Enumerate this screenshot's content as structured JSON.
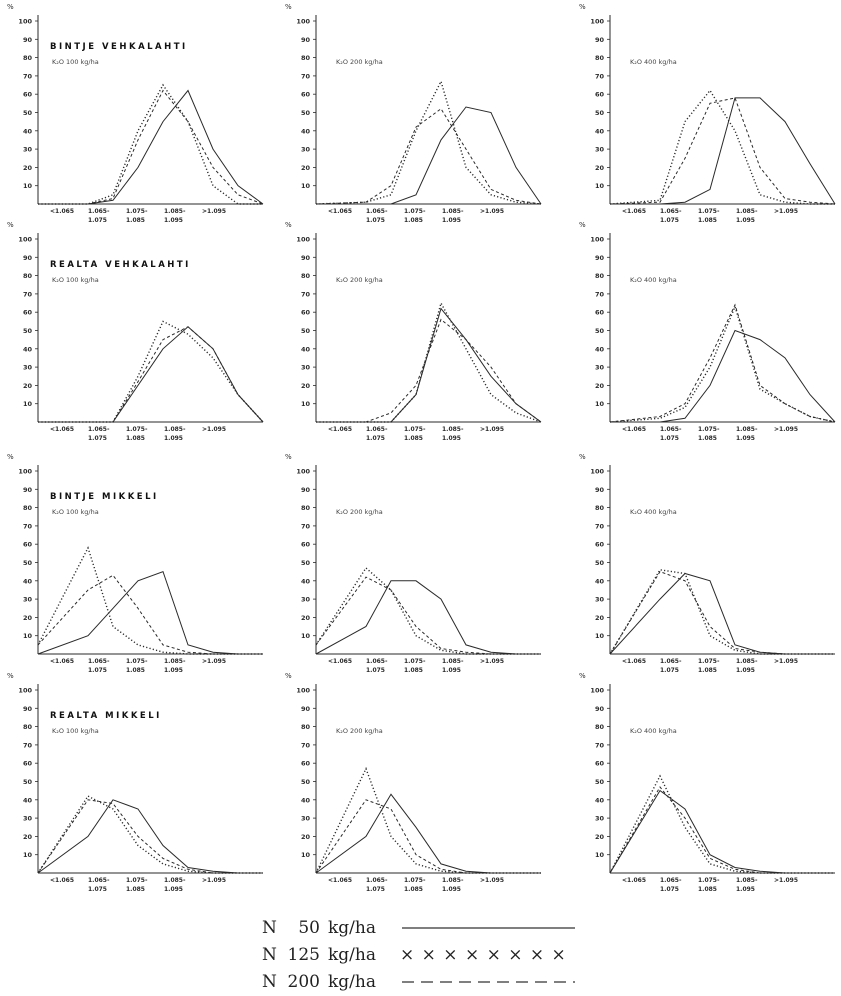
{
  "chart_data": [
    {
      "type": "line",
      "title": "BINTJE VEHKALAHTI",
      "subtitle": "K₂O  100 kg/ha",
      "ylabel": "%",
      "ylim": [
        0,
        100
      ],
      "y_ticks": [
        10,
        20,
        30,
        40,
        50,
        60,
        70,
        80,
        90,
        100
      ],
      "categories": [
        "<1.065",
        "1.065-\n1.075",
        "1.075-\n1.085",
        "1.085-\n1.095",
        ">1.095"
      ],
      "x": [
        0,
        1,
        1.5,
        2,
        2.5,
        3,
        3.5,
        4,
        4.5
      ],
      "series": [
        {
          "style": "solid",
          "values": [
            0,
            0,
            2,
            20,
            45,
            62,
            30,
            10,
            0
          ]
        },
        {
          "style": "dotted-cross",
          "values": [
            0,
            0,
            5,
            40,
            65,
            45,
            10,
            0,
            0
          ]
        },
        {
          "style": "dashed",
          "values": [
            0,
            0,
            3,
            35,
            62,
            45,
            20,
            5,
            0
          ]
        }
      ]
    },
    {
      "type": "line",
      "title": "",
      "subtitle": "K₂O  200 kg/ha",
      "ylabel": "%",
      "ylim": [
        0,
        100
      ],
      "y_ticks": [
        10,
        20,
        30,
        40,
        50,
        60,
        70,
        80,
        90,
        100
      ],
      "categories": [
        "<1.065",
        "1.065-\n1.075",
        "1.075-\n1.085",
        "1.085-\n1.095",
        ">1.095"
      ],
      "x": [
        0,
        1,
        1.5,
        2,
        2.5,
        3,
        3.5,
        4,
        4.5
      ],
      "series": [
        {
          "style": "solid",
          "values": [
            0,
            0,
            0,
            5,
            35,
            53,
            50,
            20,
            0
          ]
        },
        {
          "style": "dotted-cross",
          "values": [
            0,
            1,
            5,
            40,
            67,
            20,
            5,
            1,
            0
          ]
        },
        {
          "style": "dashed",
          "values": [
            0,
            1,
            10,
            42,
            52,
            30,
            8,
            2,
            0
          ]
        }
      ]
    },
    {
      "type": "line",
      "title": "",
      "subtitle": "K₂O  400 kg/ha",
      "ylabel": "%",
      "ylim": [
        0,
        100
      ],
      "y_ticks": [
        10,
        20,
        30,
        40,
        50,
        60,
        70,
        80,
        90,
        100
      ],
      "categories": [
        "<1.065",
        "1.065-\n1.075",
        "1.075-\n1.085",
        "1.085-\n1.095",
        ">1.095"
      ],
      "x": [
        0,
        1,
        1.5,
        2,
        2.5,
        3,
        3.5,
        4,
        4.5
      ],
      "series": [
        {
          "style": "solid",
          "values": [
            0,
            0,
            1,
            8,
            58,
            58,
            45,
            22,
            0
          ]
        },
        {
          "style": "dotted-cross",
          "values": [
            0,
            2,
            45,
            62,
            40,
            5,
            1,
            0,
            0
          ]
        },
        {
          "style": "dashed",
          "values": [
            0,
            1,
            25,
            55,
            58,
            20,
            3,
            1,
            0
          ]
        }
      ]
    },
    {
      "type": "line",
      "title": "REALTA VEHKALAHTI",
      "subtitle": "K₂O  100 kg/ha",
      "ylabel": "%",
      "ylim": [
        0,
        100
      ],
      "y_ticks": [
        10,
        20,
        30,
        40,
        50,
        60,
        70,
        80,
        90,
        100
      ],
      "categories": [
        "<1.065",
        "1.065-\n1.075",
        "1.075-\n1.085",
        "1.085-\n1.095",
        ">1.095"
      ],
      "x": [
        0,
        1,
        1.5,
        2,
        2.5,
        3,
        3.5,
        4,
        4.5
      ],
      "series": [
        {
          "style": "solid",
          "values": [
            0,
            0,
            0,
            20,
            40,
            52,
            40,
            15,
            0
          ]
        },
        {
          "style": "dotted-cross",
          "values": [
            0,
            0,
            0,
            25,
            55,
            48,
            35,
            15,
            0
          ]
        },
        {
          "style": "dashed",
          "values": [
            0,
            0,
            0,
            22,
            45,
            52,
            40,
            15,
            0
          ]
        }
      ]
    },
    {
      "type": "line",
      "title": "",
      "subtitle": "K₂O  200 kg/ha",
      "ylabel": "%",
      "ylim": [
        0,
        100
      ],
      "y_ticks": [
        10,
        20,
        30,
        40,
        50,
        60,
        70,
        80,
        90,
        100
      ],
      "categories": [
        "<1.065",
        "1.065-\n1.075",
        "1.075-\n1.085",
        "1.085-\n1.095",
        ">1.095"
      ],
      "x": [
        0,
        1,
        1.5,
        2,
        2.5,
        3,
        3.5,
        4,
        4.5
      ],
      "series": [
        {
          "style": "solid",
          "values": [
            0,
            0,
            0,
            15,
            62,
            45,
            25,
            10,
            0
          ]
        },
        {
          "style": "dotted-cross",
          "values": [
            0,
            0,
            0,
            15,
            65,
            40,
            15,
            5,
            0
          ]
        },
        {
          "style": "dashed",
          "values": [
            0,
            0,
            5,
            20,
            56,
            45,
            30,
            10,
            0
          ]
        }
      ]
    },
    {
      "type": "line",
      "title": "",
      "subtitle": "K₂O  400 kg/ha",
      "ylabel": "%",
      "ylim": [
        0,
        100
      ],
      "y_ticks": [
        10,
        20,
        30,
        40,
        50,
        60,
        70,
        80,
        90,
        100
      ],
      "categories": [
        "<1.065",
        "1.065-\n1.075",
        "1.075-\n1.085",
        "1.085-\n1.095",
        ">1.095"
      ],
      "x": [
        0,
        1,
        1.5,
        2,
        2.5,
        3,
        3.5,
        4,
        4.5
      ],
      "series": [
        {
          "style": "solid",
          "values": [
            0,
            0,
            2,
            20,
            50,
            45,
            35,
            15,
            0
          ]
        },
        {
          "style": "dotted-cross",
          "values": [
            0,
            2,
            8,
            30,
            63,
            18,
            10,
            3,
            0
          ]
        },
        {
          "style": "dashed",
          "values": [
            0,
            3,
            10,
            35,
            64,
            20,
            10,
            3,
            0
          ]
        }
      ]
    },
    {
      "type": "line",
      "title": "BINTJE MIKKELI",
      "subtitle": "K₂O  100 kg/ha",
      "ylabel": "%",
      "ylim": [
        0,
        100
      ],
      "y_ticks": [
        10,
        20,
        30,
        40,
        50,
        60,
        70,
        80,
        90,
        100
      ],
      "categories": [
        "<1.065",
        "1.065-\n1.075",
        "1.075-\n1.085",
        "1.085-\n1.095",
        ">1.095"
      ],
      "x": [
        0,
        1,
        1.5,
        2,
        2.5,
        3,
        3.5,
        4,
        4.5
      ],
      "series": [
        {
          "style": "solid",
          "values": [
            0,
            10,
            25,
            40,
            45,
            5,
            1,
            0,
            0
          ]
        },
        {
          "style": "dotted-cross",
          "values": [
            5,
            58,
            15,
            5,
            1,
            0,
            0,
            0,
            0
          ]
        },
        {
          "style": "dashed",
          "values": [
            5,
            35,
            43,
            25,
            5,
            1,
            0,
            0,
            0
          ]
        }
      ]
    },
    {
      "type": "line",
      "title": "",
      "subtitle": "K₂O  200 kg/ha",
      "ylabel": "%",
      "ylim": [
        0,
        100
      ],
      "y_ticks": [
        10,
        20,
        30,
        40,
        50,
        60,
        70,
        80,
        90,
        100
      ],
      "categories": [
        "<1.065",
        "1.065-\n1.075",
        "1.075-\n1.085",
        "1.085-\n1.095",
        ">1.095"
      ],
      "x": [
        0,
        1,
        1.5,
        2,
        2.5,
        3,
        3.5,
        4,
        4.5
      ],
      "series": [
        {
          "style": "solid",
          "values": [
            0,
            15,
            40,
            40,
            30,
            5,
            1,
            0,
            0
          ]
        },
        {
          "style": "dotted-cross",
          "values": [
            5,
            47,
            35,
            10,
            2,
            0,
            0,
            0,
            0
          ]
        },
        {
          "style": "dashed",
          "values": [
            5,
            42,
            35,
            15,
            3,
            1,
            0,
            0,
            0
          ]
        }
      ]
    },
    {
      "type": "line",
      "title": "",
      "subtitle": "K₂O  400 kg/ha",
      "ylabel": "%",
      "ylim": [
        0,
        100
      ],
      "y_ticks": [
        10,
        20,
        30,
        40,
        50,
        60,
        70,
        80,
        90,
        100
      ],
      "categories": [
        "<1.065",
        "1.065-\n1.075",
        "1.075-\n1.085",
        "1.085-\n1.095",
        ">1.095"
      ],
      "x": [
        0,
        1,
        1.5,
        2,
        2.5,
        3,
        3.5,
        4,
        4.5
      ],
      "series": [
        {
          "style": "solid",
          "values": [
            0,
            30,
            44,
            40,
            5,
            1,
            0,
            0,
            0
          ]
        },
        {
          "style": "dotted-cross",
          "values": [
            0,
            46,
            44,
            10,
            2,
            0,
            0,
            0,
            0
          ]
        },
        {
          "style": "dashed",
          "values": [
            0,
            45,
            40,
            15,
            3,
            1,
            0,
            0,
            0
          ]
        }
      ]
    },
    {
      "type": "line",
      "title": "REALTA MIKKELI",
      "subtitle": "K₂O  100 kg/ha",
      "ylabel": "%",
      "ylim": [
        0,
        100
      ],
      "y_ticks": [
        10,
        20,
        30,
        40,
        50,
        60,
        70,
        80,
        90,
        100
      ],
      "categories": [
        "<1.065",
        "1.065-\n1.075",
        "1.075-\n1.085",
        "1.085-\n1.095",
        ">1.095"
      ],
      "x": [
        0,
        1,
        1.5,
        2,
        2.5,
        3,
        3.5,
        4,
        4.5
      ],
      "series": [
        {
          "style": "solid",
          "values": [
            0,
            20,
            40,
            35,
            15,
            3,
            1,
            0,
            0
          ]
        },
        {
          "style": "dotted-cross",
          "values": [
            0,
            42,
            35,
            15,
            5,
            1,
            0,
            0,
            0
          ]
        },
        {
          "style": "dashed",
          "values": [
            0,
            40,
            38,
            20,
            8,
            2,
            0,
            0,
            0
          ]
        }
      ]
    },
    {
      "type": "line",
      "title": "",
      "subtitle": "K₂O  200 kg/ha",
      "ylabel": "%",
      "ylim": [
        0,
        100
      ],
      "y_ticks": [
        10,
        20,
        30,
        40,
        50,
        60,
        70,
        80,
        90,
        100
      ],
      "categories": [
        "<1.065",
        "1.065-\n1.075",
        "1.075-\n1.085",
        "1.085-\n1.095",
        ">1.095"
      ],
      "x": [
        0,
        1,
        1.5,
        2,
        2.5,
        3,
        3.5,
        4,
        4.5
      ],
      "series": [
        {
          "style": "solid",
          "values": [
            0,
            20,
            43,
            25,
            5,
            1,
            0,
            0,
            0
          ]
        },
        {
          "style": "dotted-cross",
          "values": [
            0,
            57,
            20,
            5,
            1,
            0,
            0,
            0,
            0
          ]
        },
        {
          "style": "dashed",
          "values": [
            0,
            40,
            35,
            10,
            2,
            0,
            0,
            0,
            0
          ]
        }
      ]
    },
    {
      "type": "line",
      "title": "",
      "subtitle": "K₂O  400 kg/ha",
      "ylabel": "%",
      "ylim": [
        0,
        100
      ],
      "y_ticks": [
        10,
        20,
        30,
        40,
        50,
        60,
        70,
        80,
        90,
        100
      ],
      "categories": [
        "<1.065",
        "1.065-\n1.075",
        "1.075-\n1.085",
        "1.085-\n1.095",
        ">1.095"
      ],
      "x": [
        0,
        1,
        1.5,
        2,
        2.5,
        3,
        3.5,
        4,
        4.5
      ],
      "series": [
        {
          "style": "solid",
          "values": [
            0,
            45,
            35,
            10,
            3,
            1,
            0,
            0,
            0
          ]
        },
        {
          "style": "dotted-cross",
          "values": [
            0,
            53,
            25,
            5,
            1,
            0,
            0,
            0,
            0
          ]
        },
        {
          "style": "dashed",
          "values": [
            0,
            47,
            30,
            8,
            2,
            0,
            0,
            0,
            0
          ]
        }
      ]
    }
  ],
  "legend": [
    {
      "n": "N",
      "value": "50",
      "unit": "kg/ha",
      "style": "solid"
    },
    {
      "n": "N",
      "value": "125",
      "unit": "kg/ha",
      "style": "cross",
      "marks": "× × × × × × × ×"
    },
    {
      "n": "N",
      "value": "200",
      "unit": "kg/ha",
      "style": "dashed"
    }
  ]
}
